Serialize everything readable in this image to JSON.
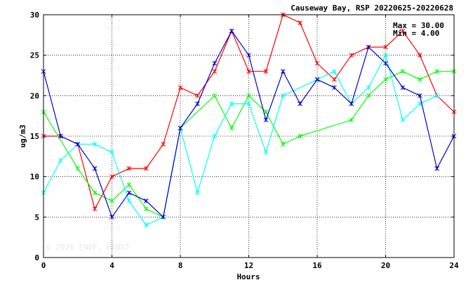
{
  "chart_data": {
    "type": "line",
    "title": "Causeway Bay, RSP 20220625-20220628",
    "xlabel": "Hours",
    "ylabel": "ug/m3",
    "xlim": [
      0,
      24
    ],
    "ylim": [
      0,
      30
    ],
    "xticks": [
      0,
      4,
      8,
      12,
      16,
      20,
      24
    ],
    "yticks": [
      0,
      5,
      10,
      15,
      20,
      25,
      30
    ],
    "grid": true,
    "max_label": "Max = 30.00",
    "min_label": "Min =  4.00",
    "watermark": "© 2026 ENVF, HKUST",
    "series": [
      {
        "color": "#ff0000",
        "points": [
          [
            0,
            15
          ],
          [
            1,
            15
          ],
          [
            2,
            14
          ],
          [
            3,
            6
          ],
          [
            4,
            10
          ],
          [
            5,
            11
          ],
          [
            6,
            11
          ],
          [
            7,
            14
          ],
          [
            8,
            21
          ],
          [
            9,
            20
          ],
          [
            10,
            23
          ],
          [
            11,
            28
          ],
          [
            12,
            23
          ],
          [
            13,
            23
          ],
          [
            14,
            30
          ],
          [
            15,
            29
          ],
          [
            16,
            24
          ],
          [
            17,
            22
          ],
          [
            18,
            25
          ],
          [
            19,
            26
          ],
          [
            20,
            26
          ],
          [
            21,
            28
          ],
          [
            22,
            25
          ],
          [
            23,
            20
          ],
          [
            24,
            18
          ]
        ]
      },
      {
        "color": "#00ff00",
        "points": [
          [
            0,
            18
          ],
          [
            2,
            11
          ],
          [
            3,
            8
          ],
          [
            4,
            7
          ],
          [
            5,
            9
          ],
          [
            6,
            6
          ],
          [
            7,
            5
          ],
          [
            8,
            16
          ],
          [
            10,
            20
          ],
          [
            11,
            16
          ],
          [
            12,
            20
          ],
          [
            13,
            18
          ],
          [
            14,
            14
          ],
          [
            15,
            15
          ],
          [
            18,
            17
          ],
          [
            19,
            20
          ],
          [
            20,
            22
          ],
          [
            21,
            23
          ],
          [
            22,
            22
          ],
          [
            23,
            23
          ],
          [
            24,
            23
          ]
        ]
      },
      {
        "color": "#00ffff",
        "points": [
          [
            0,
            8
          ],
          [
            1,
            12
          ],
          [
            2,
            14
          ],
          [
            3,
            14
          ],
          [
            4,
            13
          ],
          [
            5,
            7
          ],
          [
            6,
            4
          ],
          [
            7,
            5
          ],
          [
            8,
            16
          ],
          [
            9,
            8
          ],
          [
            10,
            15
          ],
          [
            11,
            19
          ],
          [
            12,
            19
          ],
          [
            13,
            13
          ],
          [
            14,
            20
          ],
          [
            16,
            22
          ],
          [
            17,
            23
          ],
          [
            18,
            19
          ],
          [
            19,
            21
          ],
          [
            20,
            25
          ],
          [
            21,
            17
          ],
          [
            22,
            19
          ],
          [
            23,
            20
          ]
        ]
      },
      {
        "color": "#0000cc",
        "points": [
          [
            0,
            23
          ],
          [
            1,
            15
          ],
          [
            2,
            14
          ],
          [
            3,
            11
          ],
          [
            4,
            5
          ],
          [
            5,
            8
          ],
          [
            6,
            7
          ],
          [
            7,
            5
          ],
          [
            8,
            16
          ],
          [
            9,
            19
          ],
          [
            10,
            24
          ],
          [
            11,
            28
          ],
          [
            12,
            25
          ],
          [
            13,
            17
          ],
          [
            14,
            23
          ],
          [
            15,
            19
          ],
          [
            16,
            22
          ],
          [
            17,
            21
          ],
          [
            18,
            19
          ],
          [
            19,
            26
          ],
          [
            20,
            24
          ],
          [
            21,
            21
          ],
          [
            22,
            20
          ],
          [
            23,
            11
          ],
          [
            24,
            15
          ]
        ]
      }
    ]
  }
}
